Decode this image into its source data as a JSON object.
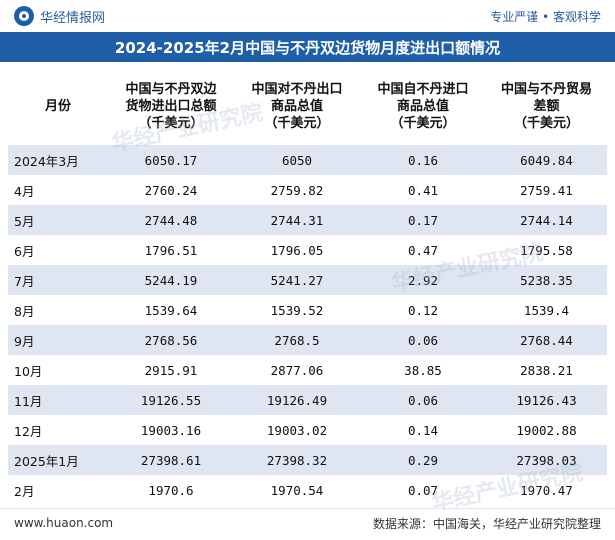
{
  "brand": {
    "name": "华经情报网",
    "slogan": "专业严谨 • 客观科学"
  },
  "title": "2024-2025年2月中国与不丹双边货物月度进出口额情况",
  "table": {
    "headers": [
      "月份",
      "中国与不丹双边货物进出口总额（千美元）",
      "中国对不丹出口商品总值（千美元）",
      "中国自不丹进口商品总值（千美元）",
      "中国与不丹贸易差额（千美元）"
    ],
    "header_lines": [
      [
        "月份"
      ],
      [
        "中国与不丹双边",
        "货物进出口总额",
        "（千美元）"
      ],
      [
        "中国对不丹出口",
        "商品总值",
        "（千美元）"
      ],
      [
        "中国自不丹进口",
        "商品总值",
        "（千美元）"
      ],
      [
        "中国与不丹贸易",
        "差额",
        "（千美元）"
      ]
    ],
    "rows": [
      [
        "2024年3月",
        "6050.17",
        "6050",
        "0.16",
        "6049.84"
      ],
      [
        "4月",
        "2760.24",
        "2759.82",
        "0.41",
        "2759.41"
      ],
      [
        "5月",
        "2744.48",
        "2744.31",
        "0.17",
        "2744.14"
      ],
      [
        "6月",
        "1796.51",
        "1796.05",
        "0.47",
        "1795.58"
      ],
      [
        "7月",
        "5244.19",
        "5241.27",
        "2.92",
        "5238.35"
      ],
      [
        "8月",
        "1539.64",
        "1539.52",
        "0.12",
        "1539.4"
      ],
      [
        "9月",
        "2768.56",
        "2768.5",
        "0.06",
        "2768.44"
      ],
      [
        "10月",
        "2915.91",
        "2877.06",
        "38.85",
        "2838.21"
      ],
      [
        "11月",
        "19126.55",
        "19126.49",
        "0.06",
        "19126.43"
      ],
      [
        "12月",
        "19003.16",
        "19003.02",
        "0.14",
        "19002.88"
      ],
      [
        "2025年1月",
        "27398.61",
        "27398.32",
        "0.29",
        "27398.03"
      ],
      [
        "2月",
        "1970.6",
        "1970.54",
        "0.07",
        "1970.47"
      ]
    ]
  },
  "watermark": "华经产业研究院",
  "footer": {
    "site": "www.huaon.com",
    "source": "数据来源：中国海关，华经产业研究院整理"
  }
}
